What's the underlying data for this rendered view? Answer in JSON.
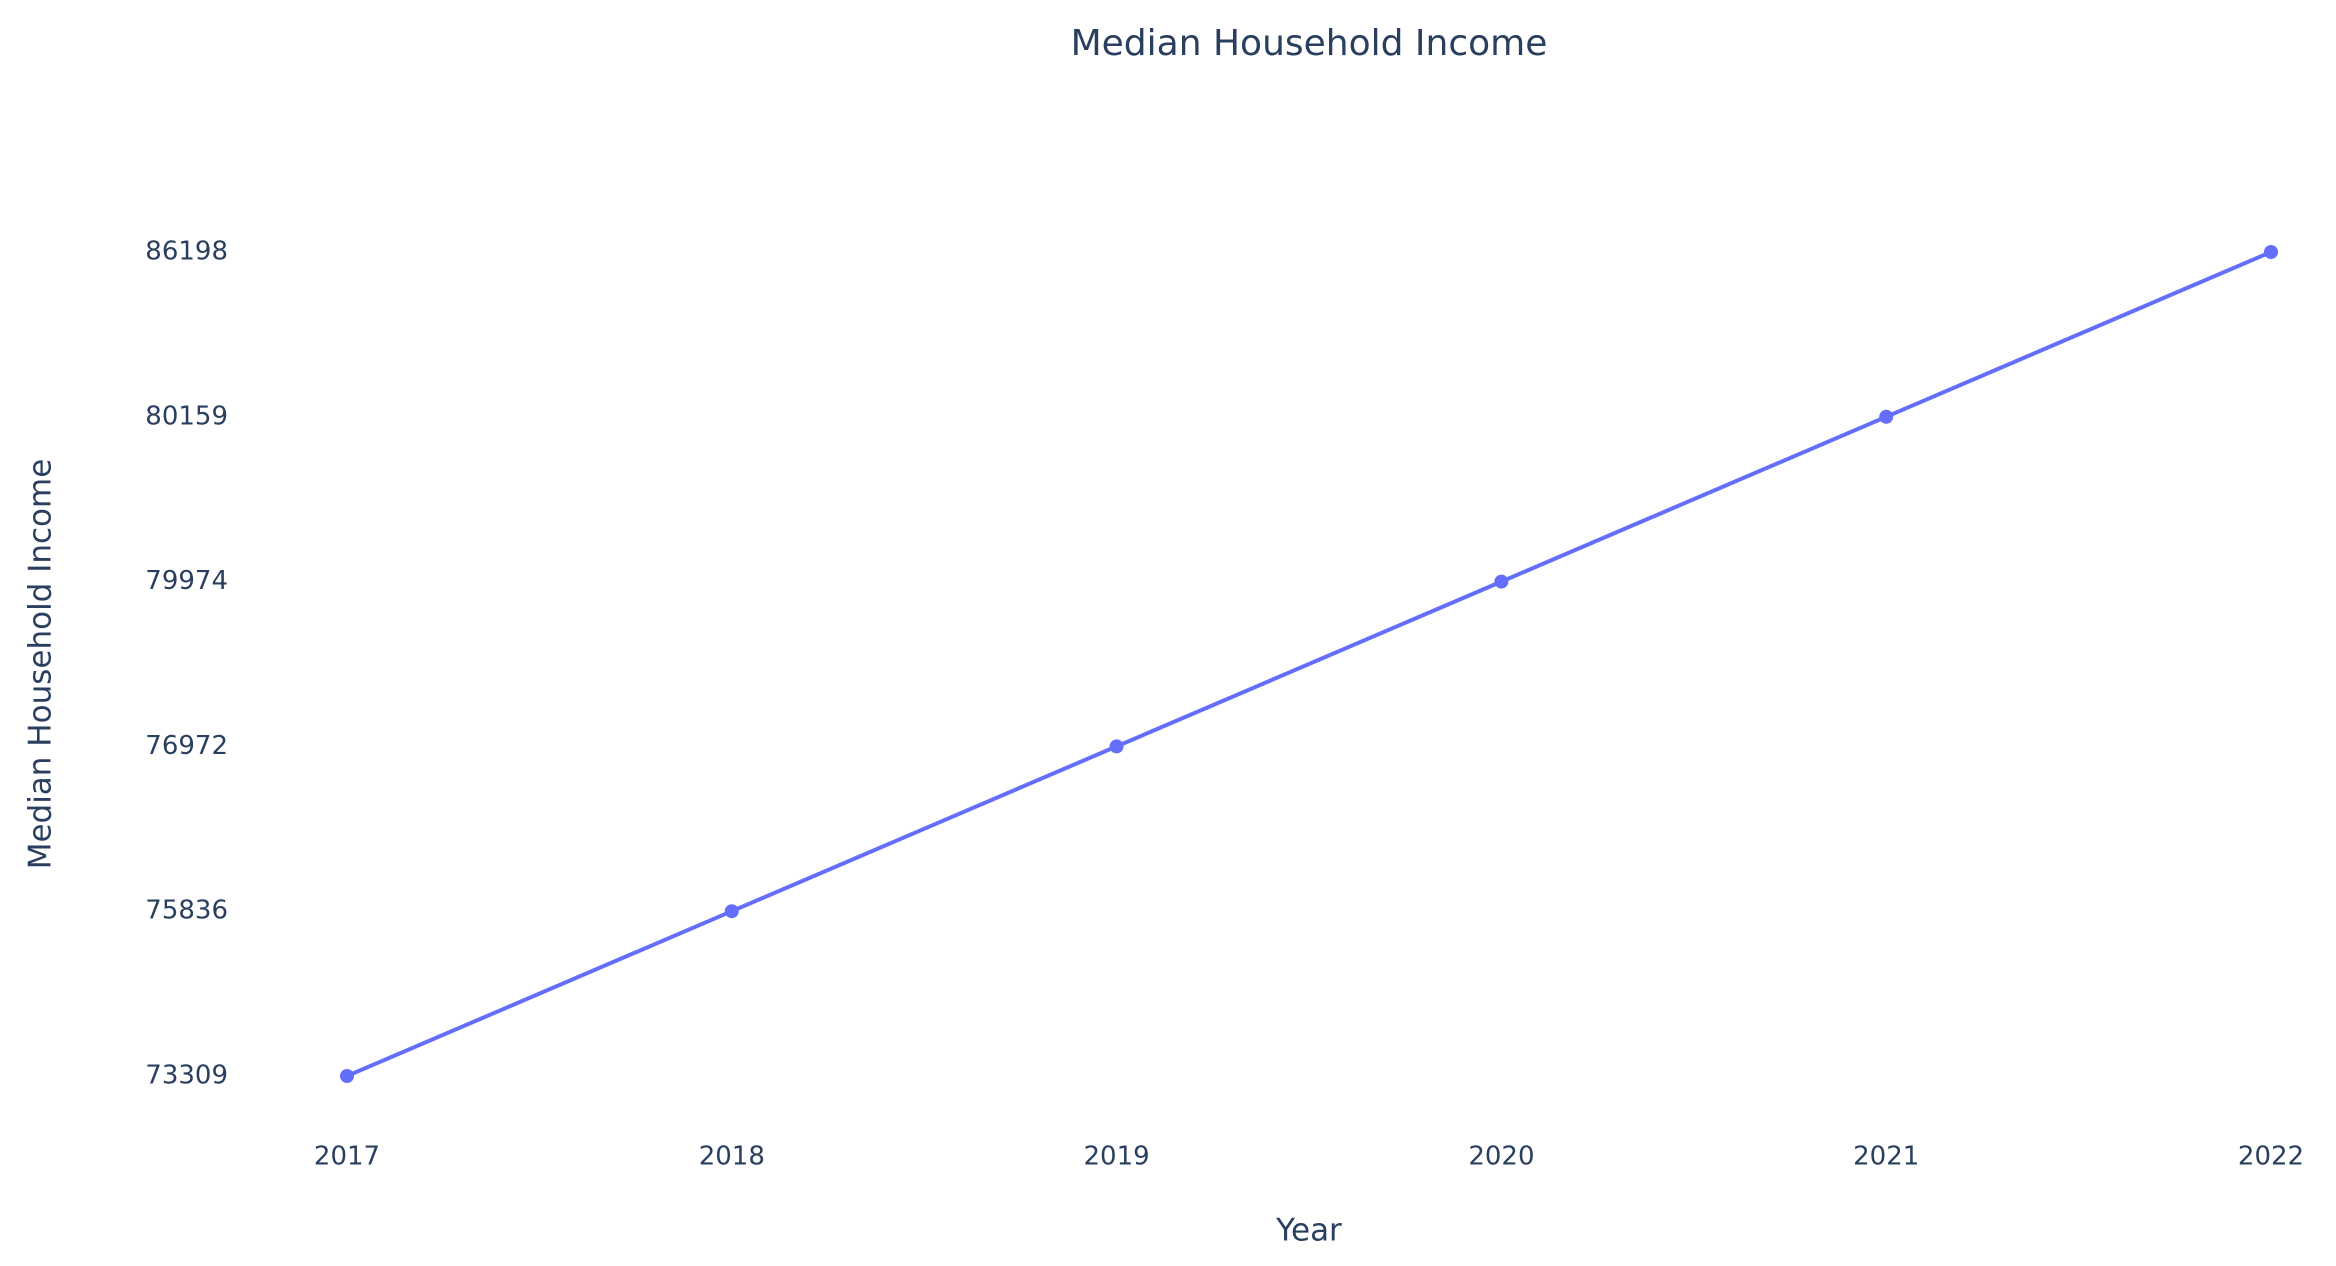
{
  "chart_data": {
    "type": "line",
    "title": "Median Household Income",
    "x_label": "Year",
    "y_label": "Median Household Income",
    "categories": [
      "2017",
      "2018",
      "2019",
      "2020",
      "2021",
      "2022"
    ],
    "values": [
      73309,
      75836,
      76972,
      79974,
      80159,
      86198
    ],
    "color": "#636efa",
    "y_axis_type": "category",
    "yticks": [
      73309,
      75836,
      76972,
      79974,
      80159,
      86198
    ],
    "grid": false
  }
}
